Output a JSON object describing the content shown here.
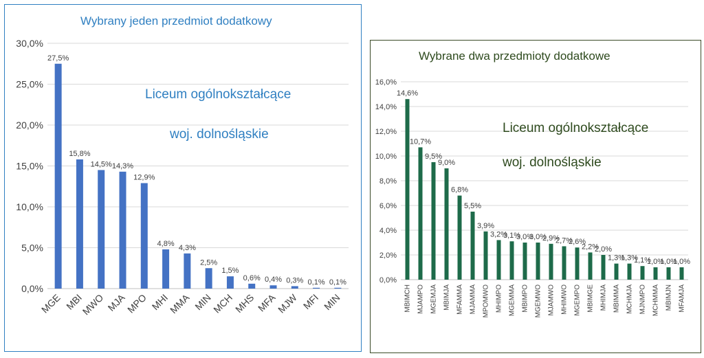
{
  "chart_data": [
    {
      "type": "bar",
      "title": "Wybrany jeden przedmiot dodatkowy",
      "annotations": [
        "Liceum ogólnokształcące",
        "woj. dolnośląskie"
      ],
      "categories": [
        "MGE",
        "MBI",
        "MWO",
        "MJA",
        "MPO",
        "MHI",
        "MMA",
        "MIN",
        "MCH",
        "MHS",
        "MFA",
        "MJW",
        "MFI",
        "MIN"
      ],
      "values": [
        27.5,
        15.8,
        14.5,
        14.3,
        12.9,
        4.8,
        4.3,
        2.5,
        1.5,
        0.6,
        0.4,
        0.3,
        0.1,
        0.1
      ],
      "value_labels": [
        "27,5%",
        "15,8%",
        "14,5%",
        "14,3%",
        "12,9%",
        "4,8%",
        "4,3%",
        "2,5%",
        "1,5%",
        "0,6%",
        "0,4%",
        "0,3%",
        "0,1%",
        "0,1%"
      ],
      "ylim": [
        0,
        30
      ],
      "yticks": [
        0,
        5,
        10,
        15,
        20,
        25,
        30
      ],
      "ytick_labels": [
        "0,0%",
        "5,0%",
        "10,0%",
        "15,0%",
        "20,0%",
        "25,0%",
        "30,0%"
      ],
      "xlabel": "",
      "ylabel": "",
      "grid": true,
      "bar_color": "#4472c4"
    },
    {
      "type": "bar",
      "title": "Wybrane dwa przedmioty dodatkowe",
      "annotations": [
        "Liceum ogólnokształcące",
        "woj. dolnośląskie"
      ],
      "categories": [
        "MBIMCH",
        "MJAMPO",
        "MGEMJA",
        "MBIMJA",
        "MFAMMA",
        "MJAMMA",
        "MPOMWO",
        "MHIMPO",
        "MGEMMA",
        "MBIMPO",
        "MGEMWO",
        "MJAMWO",
        "MHIMWO",
        "MGEMPO",
        "MBIMGE",
        "MHIMJA",
        "MBIMMA",
        "MCHMJA",
        "MJNMPO",
        "MCHMMA",
        "MBIMJN",
        "MFAMJA"
      ],
      "values": [
        14.6,
        10.7,
        9.5,
        9.0,
        6.8,
        5.5,
        3.9,
        3.2,
        3.1,
        3.0,
        3.0,
        2.9,
        2.7,
        2.6,
        2.2,
        2.0,
        1.3,
        1.3,
        1.1,
        1.0,
        1.0,
        1.0
      ],
      "value_labels": [
        "14,6%",
        "10,7%",
        "9,5%",
        "9,0%",
        "6,8%",
        "5,5%",
        "3,9%",
        "3,2%",
        "3,1%",
        "3,0%",
        "3,0%",
        "2,9%",
        "2,7%",
        "2,6%",
        "2,2%",
        "2,0%",
        "1,3%",
        "1,3%",
        "1,1%",
        "1,0%",
        "1,0%",
        "1,0%"
      ],
      "ylim": [
        0,
        16
      ],
      "yticks": [
        0,
        2,
        4,
        6,
        8,
        10,
        12,
        14,
        16
      ],
      "ytick_labels": [
        "0,0%",
        "2,0%",
        "4,0%",
        "6,0%",
        "8,0%",
        "10,0%",
        "12,0%",
        "14,0%",
        "16,0%"
      ],
      "xlabel": "",
      "ylabel": "",
      "grid": true,
      "bar_color": "#1e6b4a"
    }
  ]
}
